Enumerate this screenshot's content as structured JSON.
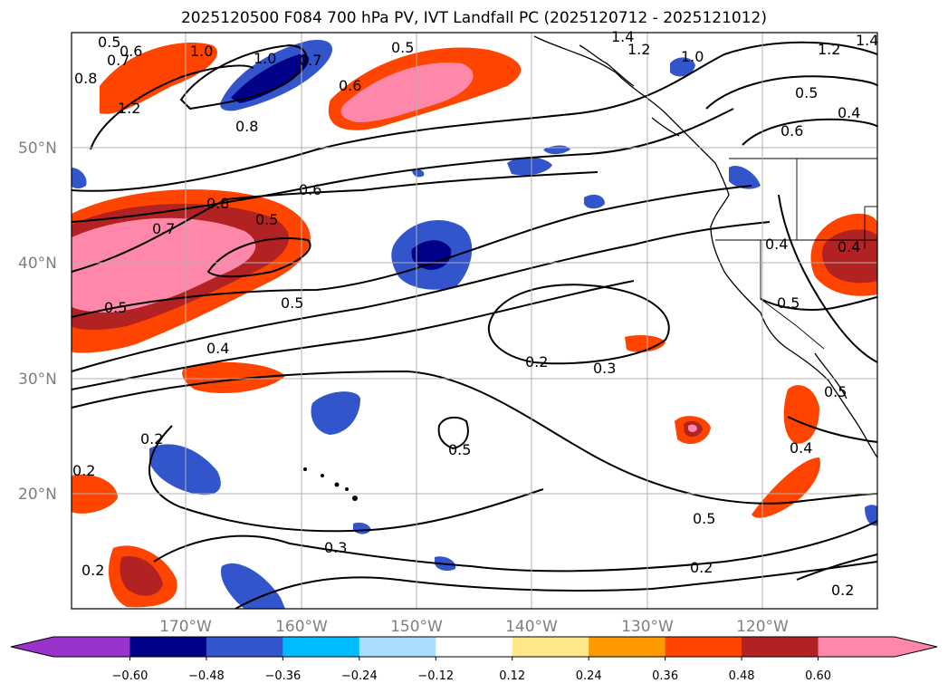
{
  "title": "2025120500 F084 700 hPa PV, IVT Landfall PC (2025120712 - 2025121012)",
  "lat_labels": [
    "50°N",
    "40°N",
    "30°N",
    "20°N"
  ],
  "lon_labels": [
    "170°W",
    "160°W",
    "150°W",
    "140°W",
    "130°W",
    "120°W"
  ],
  "colorbar": {
    "ticks": [
      "−0.60",
      "−0.48",
      "−0.36",
      "−0.24",
      "−0.12",
      "0.12",
      "0.24",
      "0.36",
      "0.48",
      "0.60"
    ],
    "colors": [
      "#9933cc",
      "#000088",
      "#3355cc",
      "#00bbff",
      "#aaddff",
      "#ffffff",
      "#ffe88a",
      "#ff9900",
      "#ff4400",
      "#b22222",
      "#ff88aa",
      "#ff88aa"
    ]
  },
  "contour_labels": [
    "0.5",
    "0.6",
    "0.7",
    "1.0",
    "1.0",
    "0.7",
    "0.5",
    "1.4",
    "1.2",
    "1.0",
    "1.2",
    "1.4",
    "0.8",
    "1.2",
    "0.8",
    "0.6",
    "0.5",
    "0.4",
    "0.6",
    "0.8",
    "0.7",
    "0.5",
    "0.6",
    "0.5",
    "0.4",
    "0.5",
    "0.5",
    "0.4",
    "0.2",
    "0.3",
    "0.2",
    "0.5",
    "0.5",
    "0.4",
    "0.2",
    "0.3",
    "0.2",
    "0.2",
    "0.5",
    "0.2",
    "0.4"
  ]
}
